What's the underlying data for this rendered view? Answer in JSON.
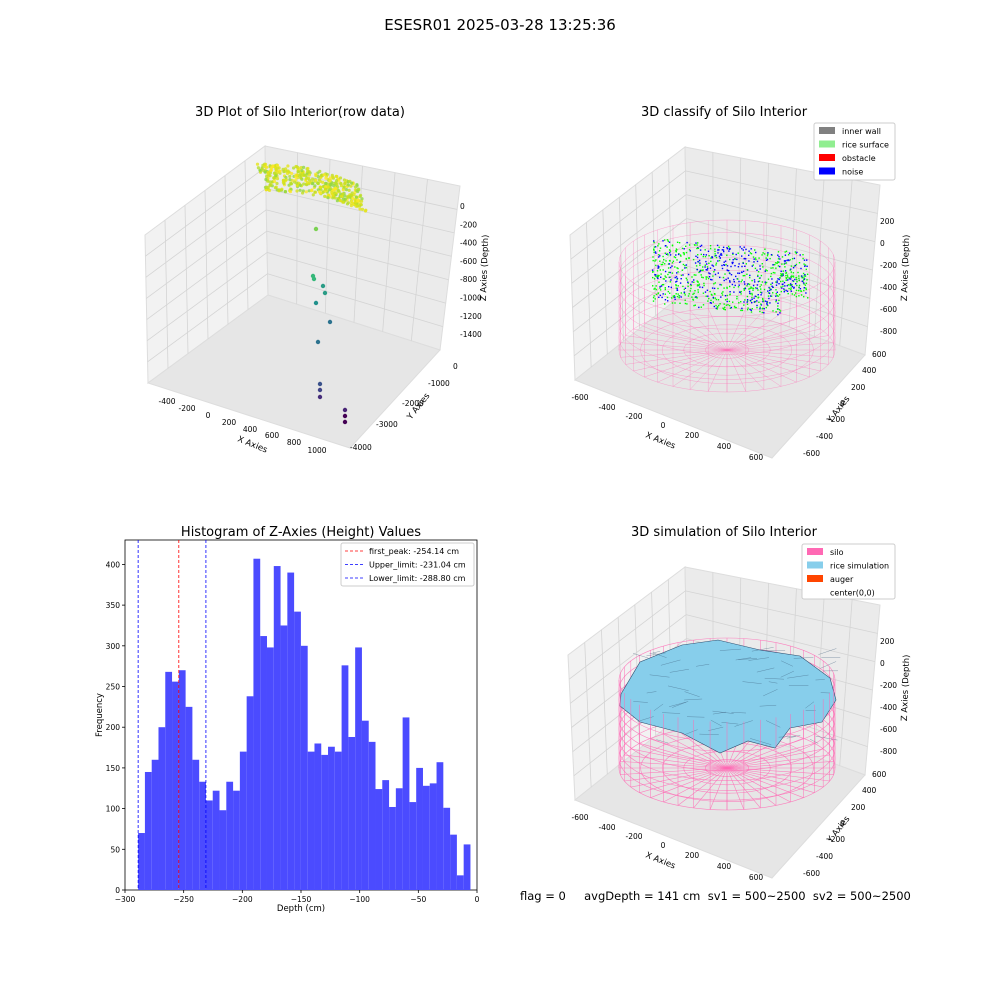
{
  "figure": {
    "suptitle": "ESESR01 2025-03-28 13:25:36"
  },
  "footer": {
    "status_text": "flag = 0     avgDepth = 141 cm  sv1 = 500~2500  sv2 = 500~2500"
  },
  "colors": {
    "silo": "#ff69b4",
    "rice": "#87ceeb",
    "auger": "#ff4500",
    "inner_wall": "#808080",
    "rice_surface": "#90ee90",
    "obstacle": "#ff0000",
    "noise": "#0000ff",
    "hist_bar": "#4b4bff"
  },
  "chart_data": [
    {
      "type": "scatter",
      "panel": "raw",
      "projection": "3d",
      "title": "3D Plot of Silo Interior(row data)",
      "xlabel": "X Axies",
      "ylabel": "Y Axies",
      "zlabel": "Z Axies (Depth)",
      "x_ticks": [
        "-400",
        "-200",
        "0",
        "200",
        "400",
        "600",
        "800",
        "1000"
      ],
      "y_ticks": [
        "0",
        "-1000",
        "-2000",
        "-3000",
        "-4000"
      ],
      "z_ticks": [
        "0",
        "-200",
        "-400",
        "-600",
        "-800",
        "-1000",
        "-1200",
        "-1400"
      ],
      "colormap": "viridis",
      "note_points": [
        {
          "x": 820,
          "y": -3800,
          "z": -1450
        },
        {
          "x": 820,
          "y": -3800,
          "z": -1400
        },
        {
          "x": 820,
          "y": -3800,
          "z": -1350
        },
        {
          "x": 700,
          "y": -3200,
          "z": -1450
        },
        {
          "x": 700,
          "y": -3200,
          "z": -1400
        },
        {
          "x": 700,
          "y": -3200,
          "z": -1350
        }
      ]
    },
    {
      "type": "scatter",
      "panel": "classify",
      "projection": "3d",
      "title": "3D classify of Silo Interior",
      "xlabel": "X Axies",
      "ylabel": "Y Axies",
      "zlabel": "Z Axies (Depth)",
      "x_ticks": [
        "-600",
        "-400",
        "-200",
        "0",
        "200",
        "400",
        "600"
      ],
      "y_ticks": [
        "600",
        "400",
        "200",
        "0",
        "-200",
        "-400",
        "-600"
      ],
      "z_ticks": [
        "200",
        "0",
        "-200",
        "-400",
        "-600",
        "-800"
      ],
      "legend": [
        "inner wall",
        "rice surface",
        "obstacle",
        "noise"
      ],
      "legend_position": "upper right"
    },
    {
      "type": "bar",
      "panel": "histogram",
      "title": "Histogram of Z-Axies (Height) Values",
      "xlabel": "Depth (cm)",
      "ylabel": "Frequency",
      "xlim": [
        -300,
        0
      ],
      "ylim": [
        0,
        430
      ],
      "x_ticks": [
        "−300",
        "−250",
        "−200",
        "−150",
        "−100",
        "−50",
        "0"
      ],
      "y_ticks": [
        "0",
        "50",
        "100",
        "150",
        "200",
        "250",
        "300",
        "350",
        "400"
      ],
      "bin_start": -288.8,
      "bin_width": 5.78,
      "values": [
        70,
        145,
        160,
        200,
        268,
        256,
        270,
        225,
        160,
        133,
        110,
        122,
        98,
        133,
        122,
        170,
        238,
        407,
        312,
        298,
        398,
        325,
        390,
        342,
        300,
        170,
        180,
        166,
        176,
        170,
        276,
        188,
        298,
        208,
        182,
        124,
        135,
        102,
        125,
        212,
        108,
        150,
        128,
        131,
        157,
        101,
        68,
        18,
        56
      ],
      "vlines": [
        {
          "label": "first_peak: -254.14 cm",
          "x": -254.14,
          "color": "#ff0000"
        },
        {
          "label": "Upper_limit: -231.04 cm",
          "x": -231.04,
          "color": "#0000ff"
        },
        {
          "label": "Lower_limit: -288.80 cm",
          "x": -288.8,
          "color": "#0000ff"
        }
      ],
      "legend_position": "upper right"
    },
    {
      "type": "surface",
      "panel": "simulation",
      "projection": "3d",
      "title": "3D simulation of Silo Interior",
      "xlabel": "X Axies",
      "ylabel": "Y Axies",
      "zlabel": "Z Axies (Depth)",
      "x_ticks": [
        "-600",
        "-400",
        "-200",
        "0",
        "200",
        "400",
        "600"
      ],
      "y_ticks": [
        "600",
        "400",
        "200",
        "0",
        "-200",
        "-400",
        "-600"
      ],
      "z_ticks": [
        "200",
        "0",
        "-200",
        "-400",
        "-600",
        "-800"
      ],
      "legend": [
        "silo",
        "rice simulation",
        "auger",
        "center(0,0)"
      ],
      "legend_position": "upper right"
    }
  ]
}
